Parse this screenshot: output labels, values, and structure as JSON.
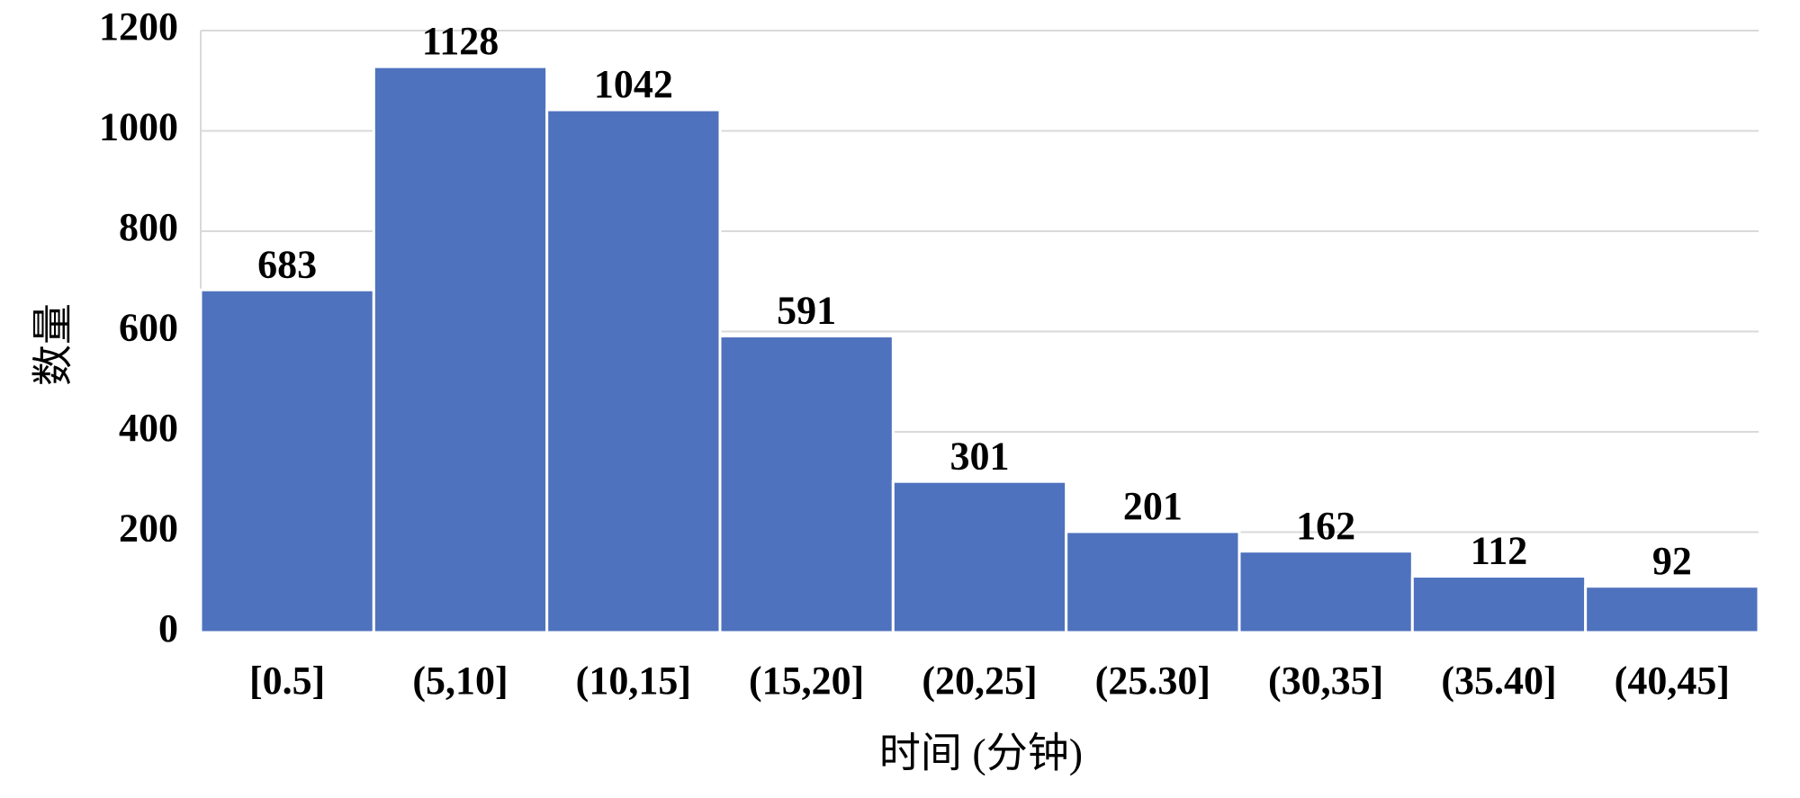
{
  "chart_data": {
    "type": "bar",
    "categories": [
      "[0.5]",
      "(5,10]",
      "(10,15]",
      "(15,20]",
      "(20,25]",
      "(25.30]",
      "(30,35]",
      "(35.40]",
      "(40,45]"
    ],
    "values": [
      683,
      1128,
      1042,
      591,
      301,
      201,
      162,
      112,
      92
    ],
    "color": "#4f72be",
    "ylim": [
      0,
      1200
    ],
    "yticks": [
      0,
      200,
      400,
      600,
      800,
      1000,
      1200
    ],
    "grid": true,
    "x_label": "时间 (分钟)",
    "y_label": "数量"
  }
}
